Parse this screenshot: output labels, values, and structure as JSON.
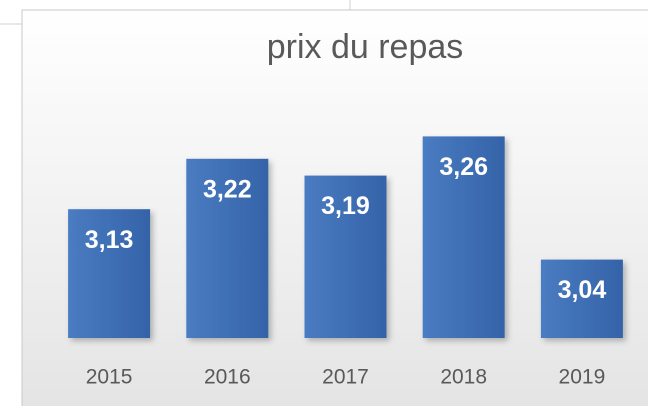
{
  "chart_data": {
    "type": "bar",
    "title": "prix du repas",
    "categories": [
      "2015",
      "2016",
      "2017",
      "2018",
      "2019"
    ],
    "values": [
      3.13,
      3.22,
      3.19,
      3.26,
      3.04
    ],
    "value_labels": [
      "3,13",
      "3,22",
      "3,19",
      "3,26",
      "3,04"
    ],
    "color": "#3f6fb5",
    "ylim": [
      2.9,
      3.3
    ],
    "grid": false
  }
}
